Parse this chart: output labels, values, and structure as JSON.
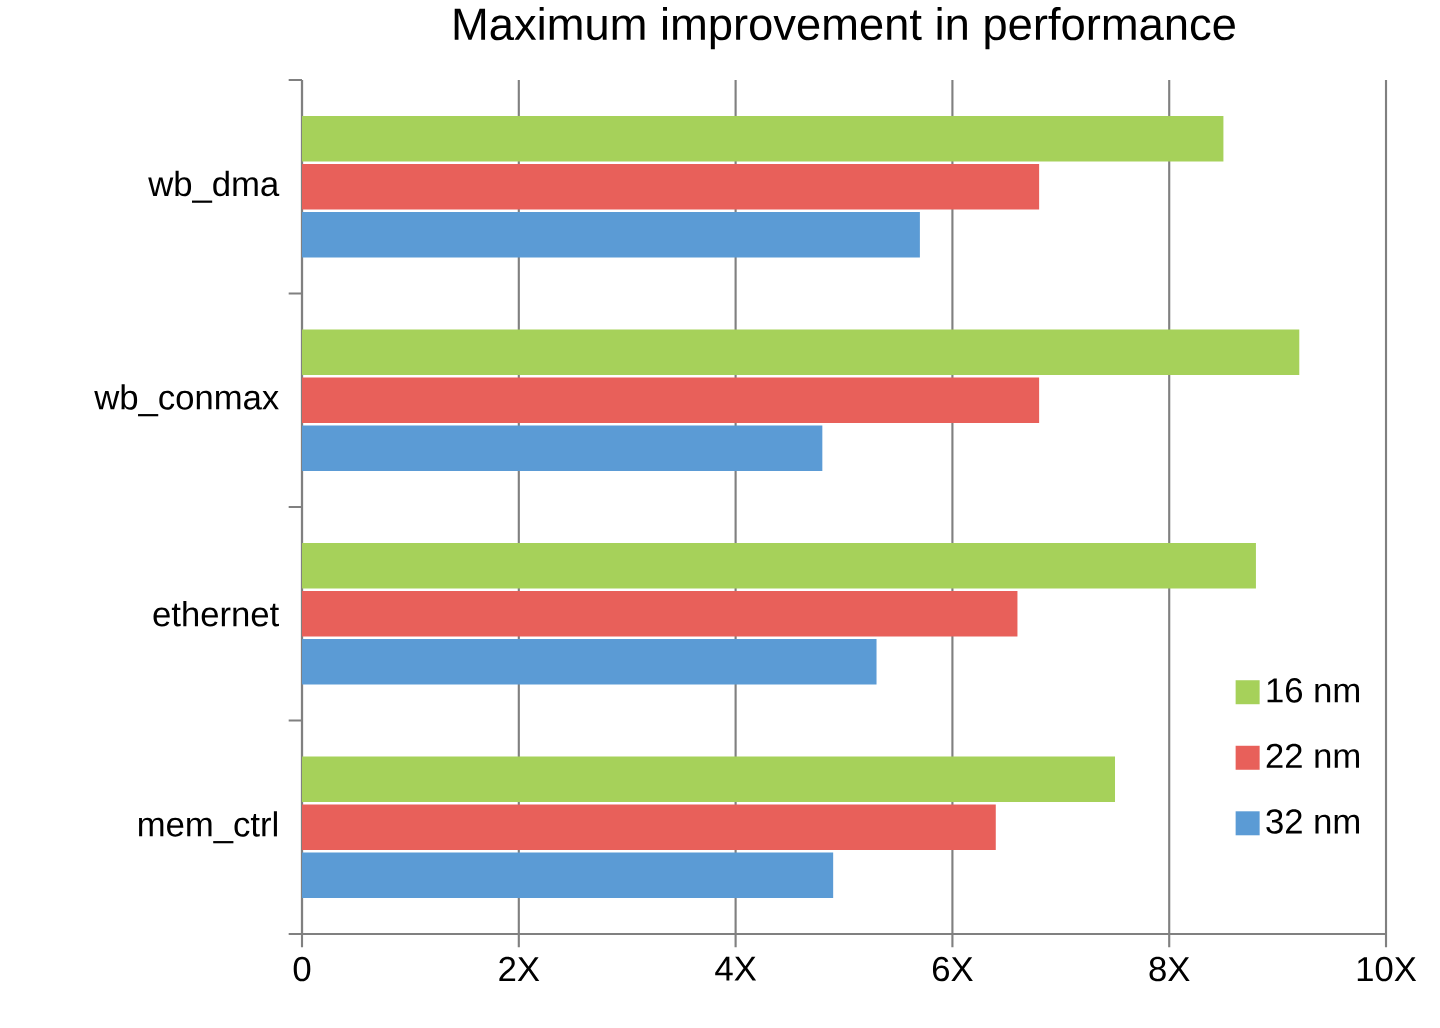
{
  "chart_data": {
    "type": "bar",
    "orientation": "horizontal",
    "title": "Maximum improvement in performance",
    "categories": [
      "wb_dma",
      "wb_conmax",
      "ethernet",
      "mem_ctrl"
    ],
    "series": [
      {
        "name": "16 nm",
        "color": "#a6d15a",
        "values": [
          8.5,
          9.2,
          8.8,
          7.5
        ]
      },
      {
        "name": "22 nm",
        "color": "#e8605a",
        "values": [
          6.8,
          6.8,
          6.6,
          6.4
        ]
      },
      {
        "name": "32 nm",
        "color": "#5b9bd5",
        "values": [
          5.7,
          4.8,
          5.3,
          4.9
        ]
      }
    ],
    "xlim": [
      0,
      10
    ],
    "xticks": [
      0,
      {
        "value": 2,
        "label": "2X"
      },
      {
        "value": 4,
        "label": "4X"
      },
      {
        "value": 6,
        "label": "6X"
      },
      {
        "value": 8,
        "label": "8X"
      },
      {
        "value": 10,
        "label": "10X"
      }
    ],
    "grid": "x",
    "legend": "bottom right"
  }
}
